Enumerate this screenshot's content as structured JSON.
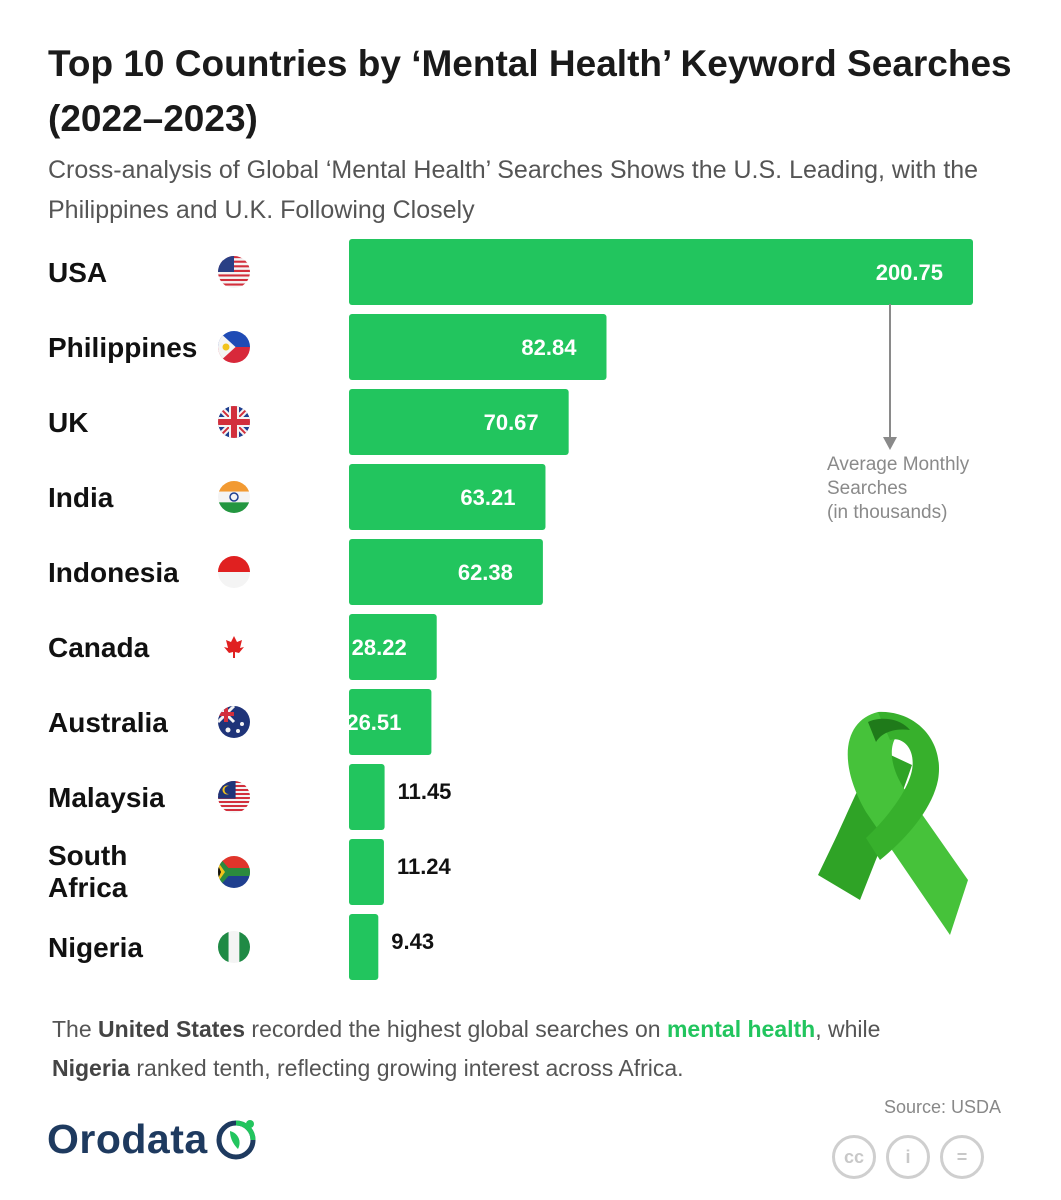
{
  "title": "Top 10 Countries by ‘Mental Health’ Keyword Searches (2022–2023)",
  "subtitle": "Cross-analysis of Global ‘Mental Health’ Searches Shows the U.S. Leading, with the Philippines and U.K. Following Closely",
  "chart_data": {
    "type": "bar",
    "orientation": "horizontal",
    "categories": [
      "USA",
      "Philippines",
      "UK",
      "India",
      "Indonesia",
      "Canada",
      "Australia",
      "Malaysia",
      "South Africa",
      "Nigeria"
    ],
    "values": [
      200.75,
      82.84,
      70.67,
      63.21,
      62.38,
      28.22,
      26.51,
      11.45,
      11.24,
      9.43
    ],
    "value_labels": [
      "200.75",
      "82.84",
      "70.67",
      "63.21",
      "62.38",
      "28.22",
      "26.51",
      "11.45",
      "11.24",
      "9.43"
    ],
    "unit_annotation": [
      "Average Monthly",
      "Searches",
      "(in thousands)"
    ],
    "xlim": [
      0,
      200.75
    ],
    "bar_color": "#22c55e",
    "flags": [
      "us-flag-icon",
      "ph-flag-icon",
      "uk-flag-icon",
      "in-flag-icon",
      "id-flag-icon",
      "ca-flag-icon",
      "au-flag-icon",
      "my-flag-icon",
      "za-flag-icon",
      "ng-flag-icon"
    ]
  },
  "footnote": {
    "p1": "The ",
    "b1": "United States",
    "p2": " recorded the highest global searches on ",
    "hl": "mental health",
    "p3": ", while ",
    "b2": "Nigeria",
    "p4": " ranked tenth, reflecting growing interest across Africa."
  },
  "source": "Source: USDA",
  "logo": {
    "text": "Orodata"
  },
  "license_icons": {
    "cc": "cc",
    "by": "i",
    "nd": "="
  },
  "colors": {
    "accent": "#22c55e",
    "brand": "#1e3a5f",
    "ribbon": "#3cb92f"
  }
}
